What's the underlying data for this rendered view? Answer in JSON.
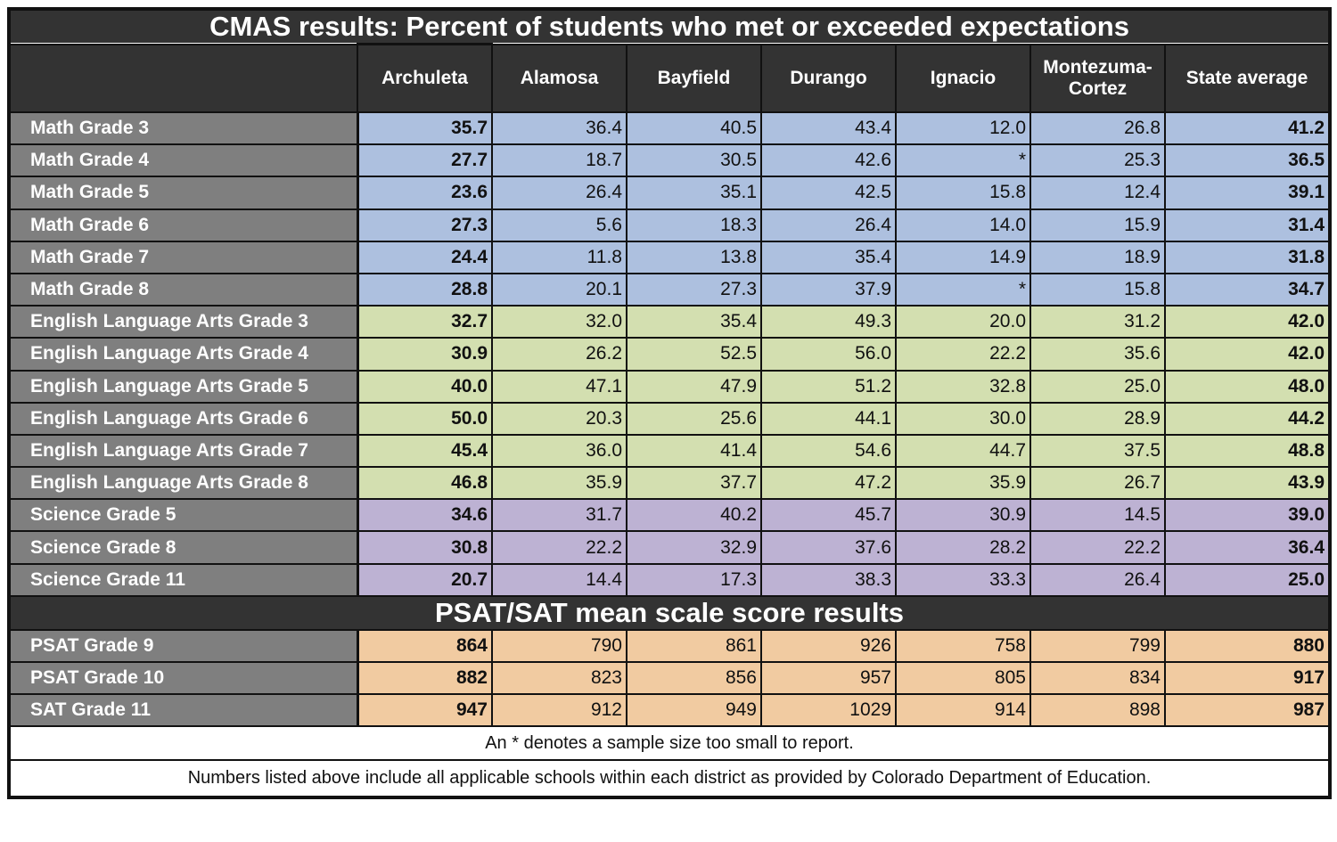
{
  "title": "CMAS results: Percent of students who met or exceeded expectations",
  "columns": [
    "Archuleta",
    "Alamosa",
    "Bayfield",
    "Durango",
    "Ignacio",
    "Montezuma-Cortez",
    "State average"
  ],
  "cmas_rows": [
    {
      "label": "Math Grade 3",
      "group": "math",
      "values": [
        "35.7",
        "36.4",
        "40.5",
        "43.4",
        "12.0",
        "26.8",
        "41.2"
      ]
    },
    {
      "label": "Math Grade 4",
      "group": "math",
      "values": [
        "27.7",
        "18.7",
        "30.5",
        "42.6",
        "*",
        "25.3",
        "36.5"
      ]
    },
    {
      "label": "Math Grade 5",
      "group": "math",
      "values": [
        "23.6",
        "26.4",
        "35.1",
        "42.5",
        "15.8",
        "12.4",
        "39.1"
      ]
    },
    {
      "label": "Math Grade 6",
      "group": "math",
      "values": [
        "27.3",
        "5.6",
        "18.3",
        "26.4",
        "14.0",
        "15.9",
        "31.4"
      ]
    },
    {
      "label": "Math Grade 7",
      "group": "math",
      "values": [
        "24.4",
        "11.8",
        "13.8",
        "35.4",
        "14.9",
        "18.9",
        "31.8"
      ]
    },
    {
      "label": "Math Grade 8",
      "group": "math",
      "values": [
        "28.8",
        "20.1",
        "27.3",
        "37.9",
        "*",
        "15.8",
        "34.7"
      ]
    },
    {
      "label": "English Language Arts Grade 3",
      "group": "ela",
      "values": [
        "32.7",
        "32.0",
        "35.4",
        "49.3",
        "20.0",
        "31.2",
        "42.0"
      ]
    },
    {
      "label": "English Language Arts Grade 4",
      "group": "ela",
      "values": [
        "30.9",
        "26.2",
        "52.5",
        "56.0",
        "22.2",
        "35.6",
        "42.0"
      ]
    },
    {
      "label": "English Language Arts Grade 5",
      "group": "ela",
      "values": [
        "40.0",
        "47.1",
        "47.9",
        "51.2",
        "32.8",
        "25.0",
        "48.0"
      ]
    },
    {
      "label": "English Language Arts Grade 6",
      "group": "ela",
      "values": [
        "50.0",
        "20.3",
        "25.6",
        "44.1",
        "30.0",
        "28.9",
        "44.2"
      ]
    },
    {
      "label": "English Language Arts Grade 7",
      "group": "ela",
      "values": [
        "45.4",
        "36.0",
        "41.4",
        "54.6",
        "44.7",
        "37.5",
        "48.8"
      ]
    },
    {
      "label": "English Language Arts Grade 8",
      "group": "ela",
      "values": [
        "46.8",
        "35.9",
        "37.7",
        "47.2",
        "35.9",
        "26.7",
        "43.9"
      ]
    },
    {
      "label": "Science Grade 5",
      "group": "sci",
      "values": [
        "34.6",
        "31.7",
        "40.2",
        "45.7",
        "30.9",
        "14.5",
        "39.0"
      ]
    },
    {
      "label": "Science Grade 8",
      "group": "sci",
      "values": [
        "30.8",
        "22.2",
        "32.9",
        "37.6",
        "28.2",
        "22.2",
        "36.4"
      ]
    },
    {
      "label": "Science Grade 11",
      "group": "sci",
      "values": [
        "20.7",
        "14.4",
        "17.3",
        "38.3",
        "33.3",
        "26.4",
        "25.0"
      ]
    }
  ],
  "sat_title": "PSAT/SAT mean scale score results",
  "sat_rows": [
    {
      "label": "PSAT Grade 9",
      "group": "sat",
      "values": [
        "864",
        "790",
        "861",
        "926",
        "758",
        "799",
        "880"
      ]
    },
    {
      "label": "PSAT Grade 10",
      "group": "sat",
      "values": [
        "882",
        "823",
        "856",
        "957",
        "805",
        "834",
        "917"
      ]
    },
    {
      "label": "SAT Grade 11",
      "group": "sat",
      "values": [
        "947",
        "912",
        "949",
        "1029",
        "914",
        "898",
        "987"
      ]
    }
  ],
  "footnotes": [
    "An * denotes a sample size too small to report.",
    "Numbers listed above include all applicable schools within each district as provided by Colorado Department of Education."
  ],
  "colors": {
    "header": "#333333",
    "label": "#7f7f7f",
    "math": "#adc0df",
    "ela": "#d3dfb0",
    "science": "#bdb2d3",
    "sat": "#f1cba1"
  }
}
